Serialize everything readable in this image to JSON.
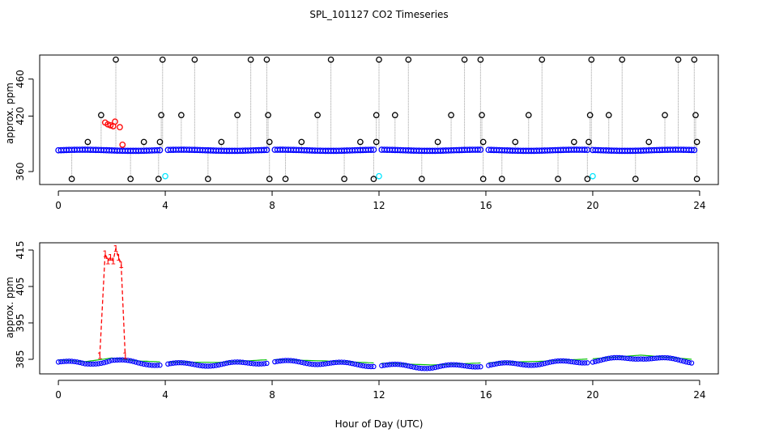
{
  "figure": {
    "title": "SPL_101127  CO2 Timeseries",
    "xlabel": "Hour of Day (UTC)"
  },
  "colors": {
    "raw": "#000000",
    "flagged": "#ff0000",
    "selected": "#0000ff",
    "cal": "#00e5ff",
    "fit": "#00c000",
    "axis": "#000000",
    "droplines": "#9a9a9a"
  },
  "chart_data": [
    {
      "type": "scatter",
      "panel": "top",
      "title": "",
      "ylabel": "approx. ppm",
      "xlim": [
        -0.7,
        24.7
      ],
      "ylim": [
        346,
        486
      ],
      "xticks": [
        0,
        4,
        8,
        12,
        16,
        20,
        24
      ],
      "yticks": [
        360,
        420,
        460
      ],
      "ytick_labels": [
        "360",
        "420",
        "460"
      ],
      "baseline_start": 383,
      "baseline_end": 383,
      "gaps": [
        [
          3.85,
          4.05
        ],
        [
          7.8,
          8.0
        ],
        [
          11.85,
          12.0
        ],
        [
          15.85,
          16.0
        ],
        [
          19.85,
          20.0
        ]
      ],
      "spikes_high": [
        2.15,
        3.9,
        5.1,
        7.2,
        7.8,
        10.2,
        12.0,
        13.1,
        15.2,
        15.8,
        18.1,
        19.95,
        21.1,
        23.2,
        23.8
      ],
      "spikes_mid": [
        1.6,
        3.85,
        4.6,
        6.7,
        7.85,
        9.7,
        11.9,
        12.6,
        14.7,
        15.85,
        17.6,
        19.9,
        20.6,
        22.7,
        23.85
      ],
      "spikes_low": [
        1.1,
        3.2,
        3.8,
        6.1,
        7.9,
        9.1,
        11.3,
        11.9,
        14.2,
        15.9,
        17.1,
        19.3,
        19.85,
        22.1,
        23.9
      ],
      "dips": [
        0.5,
        2.7,
        3.75,
        5.6,
        7.9,
        8.5,
        10.7,
        11.8,
        13.6,
        15.9,
        16.6,
        18.7,
        19.8,
        21.6,
        23.9
      ],
      "value_high": 481,
      "value_mid": 421,
      "value_low": 392,
      "value_dip": 352,
      "flagged": [
        {
          "x": 1.75,
          "y": 413
        },
        {
          "x": 1.85,
          "y": 411
        },
        {
          "x": 1.95,
          "y": 410
        },
        {
          "x": 2.05,
          "y": 409
        },
        {
          "x": 2.12,
          "y": 414
        },
        {
          "x": 2.3,
          "y": 408
        },
        {
          "x": 2.4,
          "y": 389
        }
      ],
      "cal_points": [
        {
          "x": 4.0,
          "y": 355
        },
        {
          "x": 12.0,
          "y": 355
        },
        {
          "x": 20.0,
          "y": 355
        }
      ]
    },
    {
      "type": "line",
      "panel": "bottom",
      "title": "",
      "ylabel": "approx. ppm",
      "xlim": [
        -0.7,
        24.7
      ],
      "ylim": [
        381,
        417
      ],
      "xticks": [
        0,
        4,
        8,
        12,
        16,
        20,
        24
      ],
      "yticks": [
        385,
        395,
        405,
        415
      ],
      "ytick_labels": [
        "385",
        "395",
        "405",
        "415"
      ],
      "gaps": [
        [
          3.85,
          4.05
        ],
        [
          7.8,
          8.0
        ],
        [
          11.85,
          12.0
        ],
        [
          15.85,
          16.0
        ],
        [
          19.85,
          20.0
        ]
      ],
      "baseline": [
        {
          "x": 0.0,
          "y": 384.5
        },
        {
          "x": 1.0,
          "y": 384.0
        },
        {
          "x": 2.0,
          "y": 385.0
        },
        {
          "x": 3.0,
          "y": 384.2
        },
        {
          "x": 4.0,
          "y": 383.9
        },
        {
          "x": 6.0,
          "y": 383.8
        },
        {
          "x": 8.0,
          "y": 384.6
        },
        {
          "x": 10.0,
          "y": 384.2
        },
        {
          "x": 12.0,
          "y": 383.6
        },
        {
          "x": 14.0,
          "y": 383.1
        },
        {
          "x": 16.0,
          "y": 383.7
        },
        {
          "x": 18.0,
          "y": 384.1
        },
        {
          "x": 20.0,
          "y": 384.8
        },
        {
          "x": 21.8,
          "y": 385.8
        },
        {
          "x": 23.8,
          "y": 384.6
        }
      ],
      "flagged_series": {
        "name": "1",
        "x": [
          1.55,
          1.75,
          1.85,
          1.95,
          2.05,
          2.15,
          2.25,
          2.35,
          2.5
        ],
        "y": [
          386,
          414,
          412,
          413,
          412,
          415.5,
          413,
          411,
          386
        ]
      }
    }
  ]
}
